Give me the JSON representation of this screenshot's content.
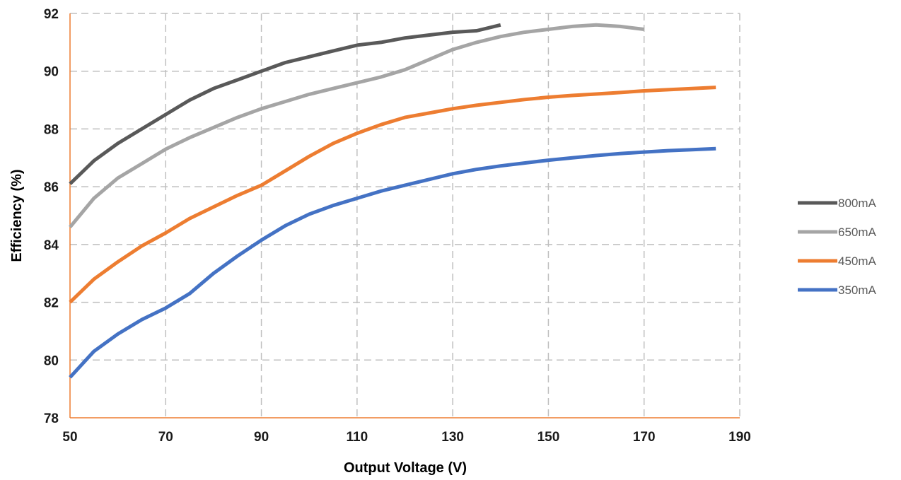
{
  "chart_data": {
    "type": "line",
    "title": "",
    "xlabel": "Output Voltage (V)",
    "ylabel": "Efficiency (%)",
    "xlim": [
      50,
      190
    ],
    "ylim": [
      78,
      92
    ],
    "xticks": [
      50,
      70,
      90,
      110,
      130,
      150,
      170,
      190
    ],
    "yticks": [
      78,
      80,
      82,
      84,
      86,
      88,
      90,
      92
    ],
    "grid": true,
    "legend_position": "right",
    "series": [
      {
        "name": "800mA",
        "color": "#595959",
        "x": [
          50,
          55,
          60,
          65,
          70,
          75,
          80,
          85,
          90,
          95,
          100,
          105,
          110,
          115,
          120,
          125,
          130,
          135,
          140
        ],
        "y": [
          86.1,
          86.9,
          87.5,
          88.0,
          88.5,
          89.0,
          89.4,
          89.7,
          90.0,
          90.3,
          90.5,
          90.7,
          90.9,
          91.0,
          91.15,
          91.25,
          91.35,
          91.4,
          91.6
        ]
      },
      {
        "name": "650mA",
        "color": "#a5a5a5",
        "x": [
          50,
          55,
          60,
          65,
          70,
          75,
          80,
          85,
          90,
          95,
          100,
          105,
          110,
          115,
          120,
          125,
          130,
          135,
          140,
          145,
          150,
          155,
          160,
          165,
          170
        ],
        "y": [
          84.6,
          85.6,
          86.3,
          86.8,
          87.3,
          87.7,
          88.05,
          88.4,
          88.7,
          88.95,
          89.2,
          89.4,
          89.6,
          89.8,
          90.05,
          90.4,
          90.75,
          91.0,
          91.2,
          91.35,
          91.45,
          91.55,
          91.6,
          91.55,
          91.45
        ]
      },
      {
        "name": "450mA",
        "color": "#ed7d31",
        "x": [
          50,
          55,
          60,
          65,
          70,
          75,
          80,
          85,
          90,
          95,
          100,
          105,
          110,
          115,
          120,
          125,
          130,
          135,
          140,
          145,
          150,
          155,
          160,
          165,
          170,
          175,
          180,
          185
        ],
        "y": [
          82.0,
          82.8,
          83.4,
          83.95,
          84.4,
          84.9,
          85.3,
          85.7,
          86.05,
          86.55,
          87.05,
          87.5,
          87.85,
          88.15,
          88.4,
          88.55,
          88.7,
          88.82,
          88.92,
          89.02,
          89.1,
          89.16,
          89.21,
          89.26,
          89.32,
          89.36,
          89.4,
          89.44
        ]
      },
      {
        "name": "350mA",
        "color": "#4472c4",
        "x": [
          50,
          55,
          60,
          65,
          70,
          75,
          80,
          85,
          90,
          95,
          100,
          105,
          110,
          115,
          120,
          125,
          130,
          135,
          140,
          145,
          150,
          155,
          160,
          165,
          170,
          175,
          180,
          185
        ],
        "y": [
          79.4,
          80.3,
          80.9,
          81.4,
          81.8,
          82.3,
          83.0,
          83.6,
          84.15,
          84.65,
          85.05,
          85.35,
          85.6,
          85.85,
          86.05,
          86.25,
          86.45,
          86.6,
          86.72,
          86.82,
          86.92,
          87.0,
          87.08,
          87.15,
          87.2,
          87.25,
          87.28,
          87.32
        ]
      }
    ]
  }
}
